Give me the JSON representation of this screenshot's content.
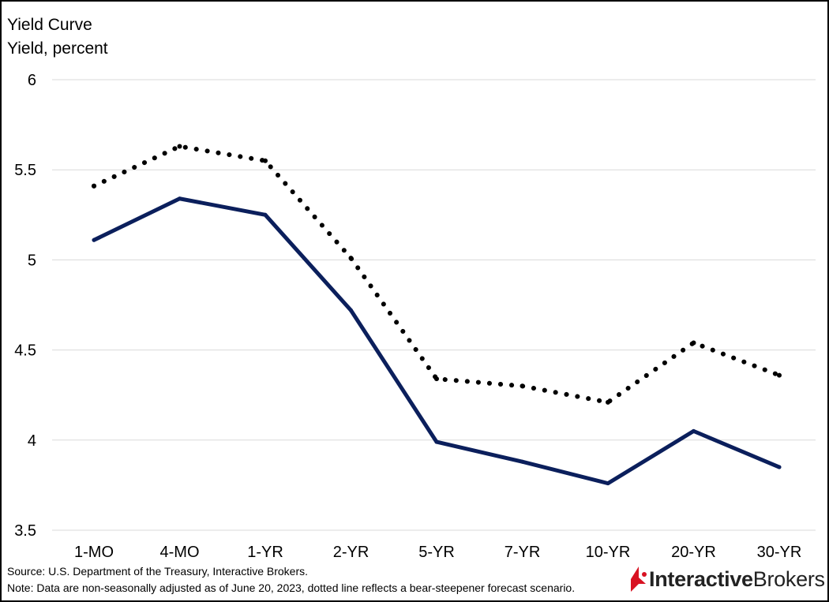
{
  "chart_data": {
    "type": "line",
    "title": "Yield Curve",
    "ylabel": "Yield, percent",
    "xlabel": "",
    "categories": [
      "1-MO",
      "4-MO",
      "1-YR",
      "2-YR",
      "5-YR",
      "7-YR",
      "10-YR",
      "20-YR",
      "30-YR"
    ],
    "ylim": [
      3.5,
      6
    ],
    "yticks": [
      "6",
      "5.5",
      "5",
      "4.5",
      "4",
      "3.5"
    ],
    "ytick_values": [
      6,
      5.5,
      5,
      4.5,
      4,
      3.5
    ],
    "grid": true,
    "legend": "none",
    "series": [
      {
        "style": "solid",
        "color": "#0b1f5c",
        "values": [
          5.11,
          5.34,
          5.25,
          4.72,
          3.99,
          3.88,
          3.76,
          4.05,
          3.85
        ]
      },
      {
        "style": "dotted",
        "color": "#000000",
        "values": [
          5.41,
          5.63,
          5.55,
          5.01,
          4.34,
          4.3,
          4.21,
          4.54,
          4.36
        ]
      }
    ]
  },
  "footer": {
    "source": "Source: U.S. Department of the Treasury, Interactive Brokers.",
    "note": "Note: Data are non-seasonally adjusted as of June 20, 2023, dotted line reflects a bear-steepener forecast scenario."
  },
  "logo": {
    "brand_bold": "Interactive",
    "brand_regular": "Brokers",
    "accent_color": "#d81222"
  }
}
